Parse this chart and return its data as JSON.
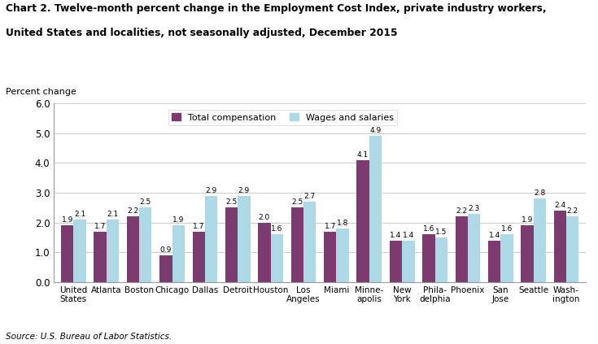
{
  "title_line1": "Chart 2. Twelve-month percent change in the Employment Cost Index, private industry workers,",
  "title_line2": "United States and localities, not seasonally adjusted, December 2015",
  "ylabel": "Percent change",
  "source": "Source: U.S. Bureau of Labor Statistics.",
  "categories": [
    "United\nStates",
    "Atlanta",
    "Boston",
    "Chicago",
    "Dallas",
    "Detroit",
    "Houston",
    "Los\nAngeles",
    "Miami",
    "Minne-\napolis",
    "New\nYork",
    "Phila-\ndelphia",
    "Phoenix",
    "San\nJose",
    "Seattle",
    "Wash-\nington"
  ],
  "total_compensation": [
    1.9,
    1.7,
    2.2,
    0.9,
    1.7,
    2.5,
    2.0,
    2.5,
    1.7,
    4.1,
    1.4,
    1.6,
    2.2,
    1.4,
    1.9,
    2.4
  ],
  "wages_and_salaries": [
    2.1,
    2.1,
    2.5,
    1.9,
    2.9,
    2.9,
    1.6,
    2.7,
    1.8,
    4.9,
    1.4,
    1.5,
    2.3,
    1.6,
    2.8,
    2.2
  ],
  "color_total": "#7B3B6E",
  "color_wages": "#ADD8E6",
  "ylim": [
    0.0,
    6.0
  ],
  "yticks": [
    0.0,
    1.0,
    2.0,
    3.0,
    4.0,
    5.0,
    6.0
  ],
  "legend_labels": [
    "Total compensation",
    "Wages and salaries"
  ],
  "bar_width": 0.38
}
